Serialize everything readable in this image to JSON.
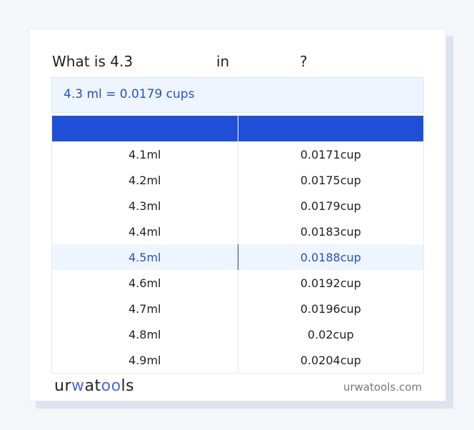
{
  "title": {
    "prefix": "What is 4.3",
    "mid": "in",
    "suffix": "?"
  },
  "result": "4.3 ml = 0.0179 cups",
  "table": {
    "rows": [
      {
        "ml": "4.1ml",
        "cup": "0.0171cup"
      },
      {
        "ml": "4.2ml",
        "cup": "0.0175cup"
      },
      {
        "ml": "4.3ml",
        "cup": "0.0179cup"
      },
      {
        "ml": "4.4ml",
        "cup": "0.0183cup"
      },
      {
        "ml": "4.5ml",
        "cup": "0.0188cup"
      },
      {
        "ml": "4.6ml",
        "cup": "0.0192cup"
      },
      {
        "ml": "4.7ml",
        "cup": "0.0196cup"
      },
      {
        "ml": "4.8ml",
        "cup": "0.02cup"
      },
      {
        "ml": "4.9ml",
        "cup": "0.0204cup"
      }
    ],
    "highlighted_index": 4
  },
  "footer": {
    "logo": "urwatools",
    "site": "urwatools.com"
  },
  "colors": {
    "accent": "#1e4fd6",
    "highlight_bg": "#eef5ff",
    "highlight_text": "#2550c8"
  }
}
